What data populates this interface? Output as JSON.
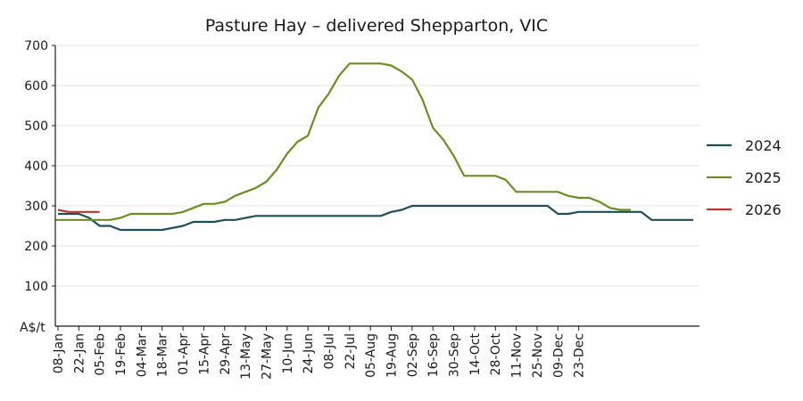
{
  "chart_data": {
    "type": "line",
    "title": "Pasture Hay – delivered Shepparton, VIC",
    "ylabel": "A$/t",
    "xlabel": "",
    "ylim": [
      0,
      700
    ],
    "yticks": [
      100,
      200,
      300,
      400,
      500,
      600,
      700
    ],
    "grid": "horizontal",
    "legend_position": "right",
    "x_tick_labels": [
      "08-Jan",
      "22-Jan",
      "05-Feb",
      "19-Feb",
      "04-Mar",
      "18-Mar",
      "01-Apr",
      "15-Apr",
      "29-Apr",
      "13-May",
      "27-May",
      "10-Jun",
      "24-Jun",
      "08-Jul",
      "22-Jul",
      "05-Aug",
      "19-Aug",
      "02-Sep",
      "16-Sep",
      "30-Sep",
      "14-Oct",
      "28-Oct",
      "11-Nov",
      "25-Nov",
      "09-Dec",
      "23-Dec"
    ],
    "x_unit": "week of year",
    "series": [
      {
        "name": "2024",
        "color": "#1f4e5a",
        "points": [
          [
            0,
            280
          ],
          [
            2,
            280
          ],
          [
            3,
            270
          ],
          [
            4,
            250
          ],
          [
            5,
            250
          ],
          [
            6,
            240
          ],
          [
            10,
            240
          ],
          [
            12,
            250
          ],
          [
            13,
            260
          ],
          [
            15,
            260
          ],
          [
            16,
            265
          ],
          [
            17,
            265
          ],
          [
            19,
            275
          ],
          [
            31,
            275
          ],
          [
            32,
            285
          ],
          [
            33,
            290
          ],
          [
            34,
            300
          ],
          [
            41,
            300
          ],
          [
            44,
            300
          ],
          [
            46,
            300
          ],
          [
            47,
            300
          ],
          [
            48,
            280
          ],
          [
            49,
            280
          ],
          [
            50,
            285
          ],
          [
            55,
            285
          ],
          [
            56,
            285
          ],
          [
            57,
            265
          ],
          [
            59,
            265
          ],
          [
            60,
            265
          ],
          [
            61,
            265
          ]
        ]
      },
      {
        "name": "2025",
        "color": "#6b8e23",
        "points": [
          [
            -0.3,
            265
          ],
          [
            4,
            265
          ],
          [
            5,
            265
          ],
          [
            6,
            270
          ],
          [
            7,
            280
          ],
          [
            11,
            280
          ],
          [
            12,
            285
          ],
          [
            13,
            295
          ],
          [
            14,
            305
          ],
          [
            15,
            305
          ],
          [
            16,
            310
          ],
          [
            17,
            325
          ],
          [
            18,
            335
          ],
          [
            19,
            345
          ],
          [
            20,
            360
          ],
          [
            21,
            390
          ],
          [
            22,
            430
          ],
          [
            23,
            460
          ],
          [
            24,
            475
          ],
          [
            25,
            545
          ],
          [
            26,
            580
          ],
          [
            27,
            625
          ],
          [
            28,
            655
          ],
          [
            31,
            655
          ],
          [
            32,
            650
          ],
          [
            33,
            635
          ],
          [
            34,
            615
          ],
          [
            35,
            565
          ],
          [
            36,
            495
          ],
          [
            37,
            465
          ],
          [
            38,
            425
          ],
          [
            39,
            375
          ],
          [
            42,
            375
          ],
          [
            43,
            365
          ],
          [
            44,
            335
          ],
          [
            45,
            335
          ],
          [
            46,
            335
          ],
          [
            47,
            335
          ],
          [
            48,
            335
          ],
          [
            49,
            325
          ],
          [
            50,
            320
          ],
          [
            51,
            320
          ],
          [
            52,
            310
          ],
          [
            53,
            295
          ],
          [
            54,
            290
          ],
          [
            55,
            290
          ]
        ]
      },
      {
        "name": "2026",
        "color": "#b5382f",
        "points": [
          [
            0,
            290
          ],
          [
            1,
            285
          ],
          [
            2,
            285
          ],
          [
            3,
            285
          ],
          [
            4,
            285
          ]
        ]
      }
    ]
  }
}
